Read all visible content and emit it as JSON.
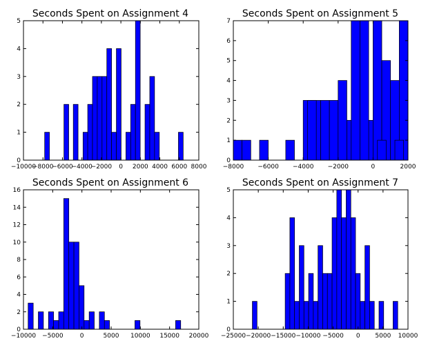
{
  "colors": {
    "bar_fill": "#0000ff",
    "bar_edge": "#000000",
    "background": "#ffffff"
  },
  "chart_data": [
    {
      "type": "bar",
      "title": "Seconds Spent on Assignment 4",
      "xlabel": "",
      "ylabel": "",
      "xlim": [
        -10000,
        8000
      ],
      "ylim": [
        0,
        5
      ],
      "xticks": [
        -10000,
        -8000,
        -6000,
        -4000,
        -2000,
        0,
        2000,
        4000,
        6000,
        8000
      ],
      "xtick_labels": [
        "−10000",
        "−8000",
        "−6000",
        "−4000",
        "−2000",
        "0",
        "2000",
        "4000",
        "6000",
        "8000"
      ],
      "yticks": [
        0,
        1,
        2,
        3,
        4,
        5
      ],
      "ytick_labels": [
        "0",
        "1",
        "2",
        "3",
        "4",
        "5"
      ],
      "bin_width": 490,
      "bins": [
        {
          "x": -7580,
          "count": 1
        },
        {
          "x": -5600,
          "count": 2
        },
        {
          "x": -4640,
          "count": 2
        },
        {
          "x": -3640,
          "count": 1
        },
        {
          "x": -3160,
          "count": 2
        },
        {
          "x": -2670,
          "count": 3
        },
        {
          "x": -2180,
          "count": 3
        },
        {
          "x": -1690,
          "count": 3
        },
        {
          "x": -1200,
          "count": 4
        },
        {
          "x": -710,
          "count": 1
        },
        {
          "x": -220,
          "count": 4
        },
        {
          "x": 760,
          "count": 1
        },
        {
          "x": 1250,
          "count": 2
        },
        {
          "x": 1740,
          "count": 5
        },
        {
          "x": 2720,
          "count": 2
        },
        {
          "x": 3210,
          "count": 3
        },
        {
          "x": 3700,
          "count": 1
        },
        {
          "x": 6150,
          "count": 1
        }
      ]
    },
    {
      "type": "bar",
      "title": "Seconds Spent on Assignment 5",
      "xlabel": "",
      "ylabel": "",
      "xlim": [
        -8000,
        2000
      ],
      "ylim": [
        0,
        7
      ],
      "xticks": [
        -8000,
        -6000,
        -4000,
        -2000,
        0,
        2000
      ],
      "xtick_labels": [
        "−8000",
        "−6000",
        "−4000",
        "−2000",
        "0",
        "2000"
      ],
      "yticks": [
        0,
        1,
        2,
        3,
        4,
        5,
        6,
        7
      ],
      "ytick_labels": [
        "0",
        "1",
        "2",
        "3",
        "4",
        "5",
        "6",
        "7"
      ],
      "bin_width": 500,
      "bins": [
        {
          "x": -7750,
          "count": 1
        },
        {
          "x": -7250,
          "count": 1
        },
        {
          "x": -6250,
          "count": 1
        },
        {
          "x": -4750,
          "count": 1
        },
        {
          "x": -3750,
          "count": 3
        },
        {
          "x": -3250,
          "count": 3
        },
        {
          "x": -2750,
          "count": 3
        },
        {
          "x": -2250,
          "count": 3
        },
        {
          "x": -1750,
          "count": 4
        },
        {
          "x": -1250,
          "count": 2
        },
        {
          "x": -750,
          "count": 5
        },
        {
          "x": -250,
          "count": 2
        },
        {
          "x": 250,
          "count": 7
        },
        {
          "x": 750,
          "count": 5
        },
        {
          "x": 1250,
          "count": 4
        },
        {
          "x": 1750,
          "count": 7
        }
      ],
      "extra_bins": [
        {
          "x": -3500,
          "count": 3
        },
        {
          "x": -1000,
          "count": 7
        },
        {
          "x": -500,
          "count": 7
        },
        {
          "x": 500,
          "count": 1
        },
        {
          "x": 1500,
          "count": 1
        }
      ]
    },
    {
      "type": "bar",
      "title": "Seconds Spent on Assignment 6",
      "xlabel": "",
      "ylabel": "",
      "xlim": [
        -10000,
        20000
      ],
      "ylim": [
        0,
        16
      ],
      "xticks": [
        -10000,
        -5000,
        0,
        5000,
        10000,
        15000,
        20000
      ],
      "xtick_labels": [
        "−10000",
        "−5000",
        "0",
        "5000",
        "10000",
        "15000",
        "20000"
      ],
      "yticks": [
        0,
        2,
        4,
        6,
        8,
        10,
        12,
        14,
        16
      ],
      "ytick_labels": [
        "0",
        "2",
        "4",
        "6",
        "8",
        "10",
        "12",
        "14",
        "16"
      ],
      "bin_width": 870,
      "bins": [
        {
          "x": -8765,
          "count": 3
        },
        {
          "x": -7025,
          "count": 2
        },
        {
          "x": -5285,
          "count": 2
        },
        {
          "x": -4415,
          "count": 1
        },
        {
          "x": -3545,
          "count": 2
        },
        {
          "x": -2675,
          "count": 15
        },
        {
          "x": -1805,
          "count": 10
        },
        {
          "x": -935,
          "count": 10
        },
        {
          "x": -65,
          "count": 5
        },
        {
          "x": 805,
          "count": 1
        },
        {
          "x": 1675,
          "count": 2
        },
        {
          "x": 3415,
          "count": 2
        },
        {
          "x": 4285,
          "count": 1
        },
        {
          "x": 9505,
          "count": 1
        },
        {
          "x": 16465,
          "count": 1
        }
      ]
    },
    {
      "type": "bar",
      "title": "Seconds Spent on Assignment 7",
      "xlabel": "",
      "ylabel": "",
      "xlim": [
        -25000,
        10000
      ],
      "ylim": [
        0,
        5
      ],
      "xticks": [
        -25000,
        -20000,
        -15000,
        -10000,
        -5000,
        0,
        5000,
        10000
      ],
      "xtick_labels": [
        "−25000",
        "−20000",
        "−15000",
        "−10000",
        "−5000",
        "0",
        "5000",
        "10000"
      ],
      "yticks": [
        0,
        1,
        2,
        3,
        4,
        5
      ],
      "ytick_labels": [
        "0",
        "1",
        "2",
        "3",
        "4",
        "5"
      ],
      "bin_width": 940,
      "bins": [
        {
          "x": -20720,
          "count": 1
        },
        {
          "x": -14140,
          "count": 2
        },
        {
          "x": -13200,
          "count": 4
        },
        {
          "x": -12260,
          "count": 1
        },
        {
          "x": -11320,
          "count": 3
        },
        {
          "x": -10380,
          "count": 1
        },
        {
          "x": -9440,
          "count": 2
        },
        {
          "x": -8500,
          "count": 1
        },
        {
          "x": -7560,
          "count": 3
        },
        {
          "x": -6620,
          "count": 2
        },
        {
          "x": -5680,
          "count": 2
        },
        {
          "x": -4740,
          "count": 4
        },
        {
          "x": -3800,
          "count": 5
        },
        {
          "x": -2860,
          "count": 4
        },
        {
          "x": -1920,
          "count": 5
        },
        {
          "x": -980,
          "count": 4
        },
        {
          "x": -40,
          "count": 2
        },
        {
          "x": 900,
          "count": 1
        },
        {
          "x": 1840,
          "count": 3
        },
        {
          "x": 2780,
          "count": 1
        },
        {
          "x": 4660,
          "count": 1
        },
        {
          "x": 7480,
          "count": 1
        }
      ]
    }
  ]
}
